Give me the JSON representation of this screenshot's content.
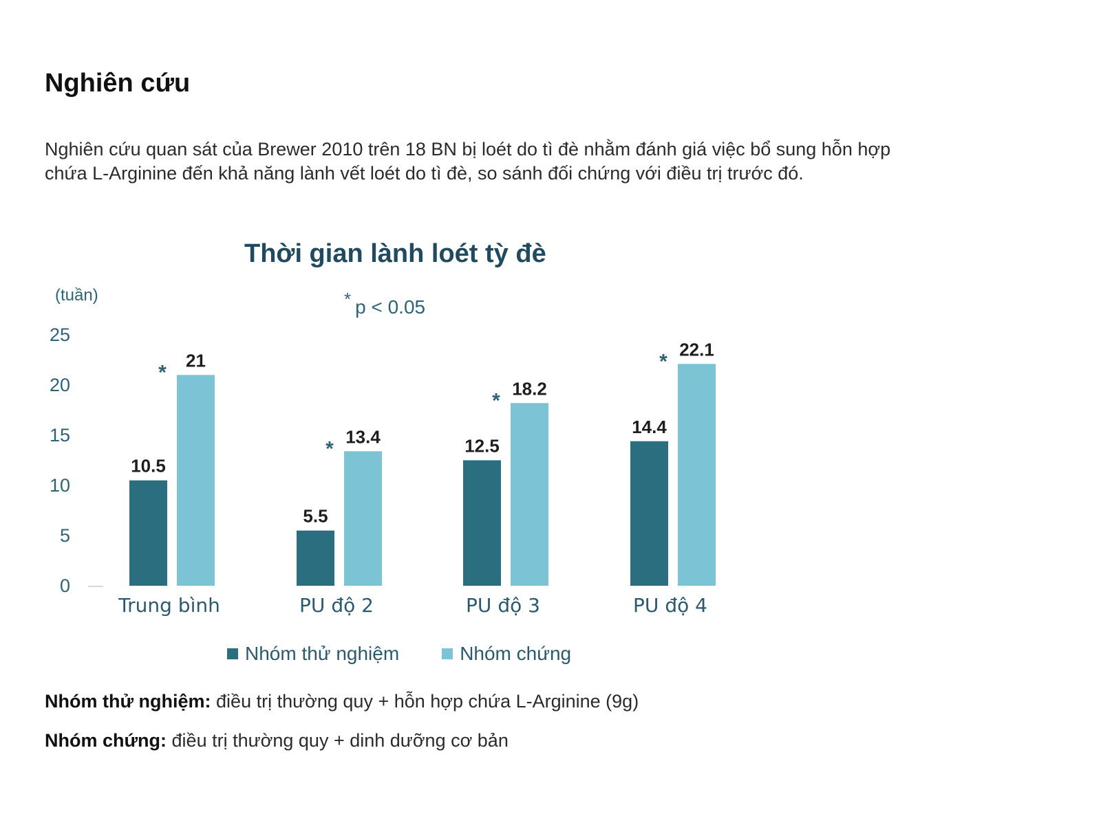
{
  "heading": "Nghiên cứu",
  "intro_line1": "Nghiên cứu quan sát của Brewer 2010 trên 18 BN bị loét do tì đè nhằm đánh giá việc bổ sung hỗn hợp",
  "intro_line2": "chứa L-Arginine đến khả năng lành vết loét do tì đè, so sánh đối chứng với điều trị trước đó.",
  "chart_data": {
    "type": "bar",
    "title": "Thời gian lành loét tỳ đè",
    "ylabel": "(tuần)",
    "annotation_star": "*",
    "annotation_text": "p < 0.05",
    "categories": [
      "Trung bình",
      "PU độ 2",
      "PU độ 3",
      "PU độ 4"
    ],
    "series": [
      {
        "name": "Nhóm thử nghiệm",
        "values": [
          10.5,
          5.5,
          12.5,
          14.4
        ],
        "labels": [
          "10.5",
          "5.5",
          "12.5",
          "14.4"
        ],
        "color": "#2b6e80"
      },
      {
        "name": "Nhóm chứng",
        "values": [
          21,
          13.4,
          18.2,
          22.1
        ],
        "labels": [
          "21",
          "13.4",
          "18.2",
          "22.1"
        ],
        "color": "#7cc3d6"
      }
    ],
    "significance": [
      true,
      true,
      true,
      true
    ],
    "ylim": [
      0,
      25
    ],
    "yticks": [
      "0",
      "5",
      "10",
      "15",
      "20",
      "25"
    ],
    "grid": false,
    "legend": "bottom"
  },
  "notes": [
    {
      "label": "Nhóm thử nghiệm:",
      "text": " điều trị thường quy + hỗn hợp chứa L-Arginine (9g)"
    },
    {
      "label": "Nhóm chứng:",
      "text": " điều trị thường quy + dinh dưỡng cơ bản"
    }
  ]
}
